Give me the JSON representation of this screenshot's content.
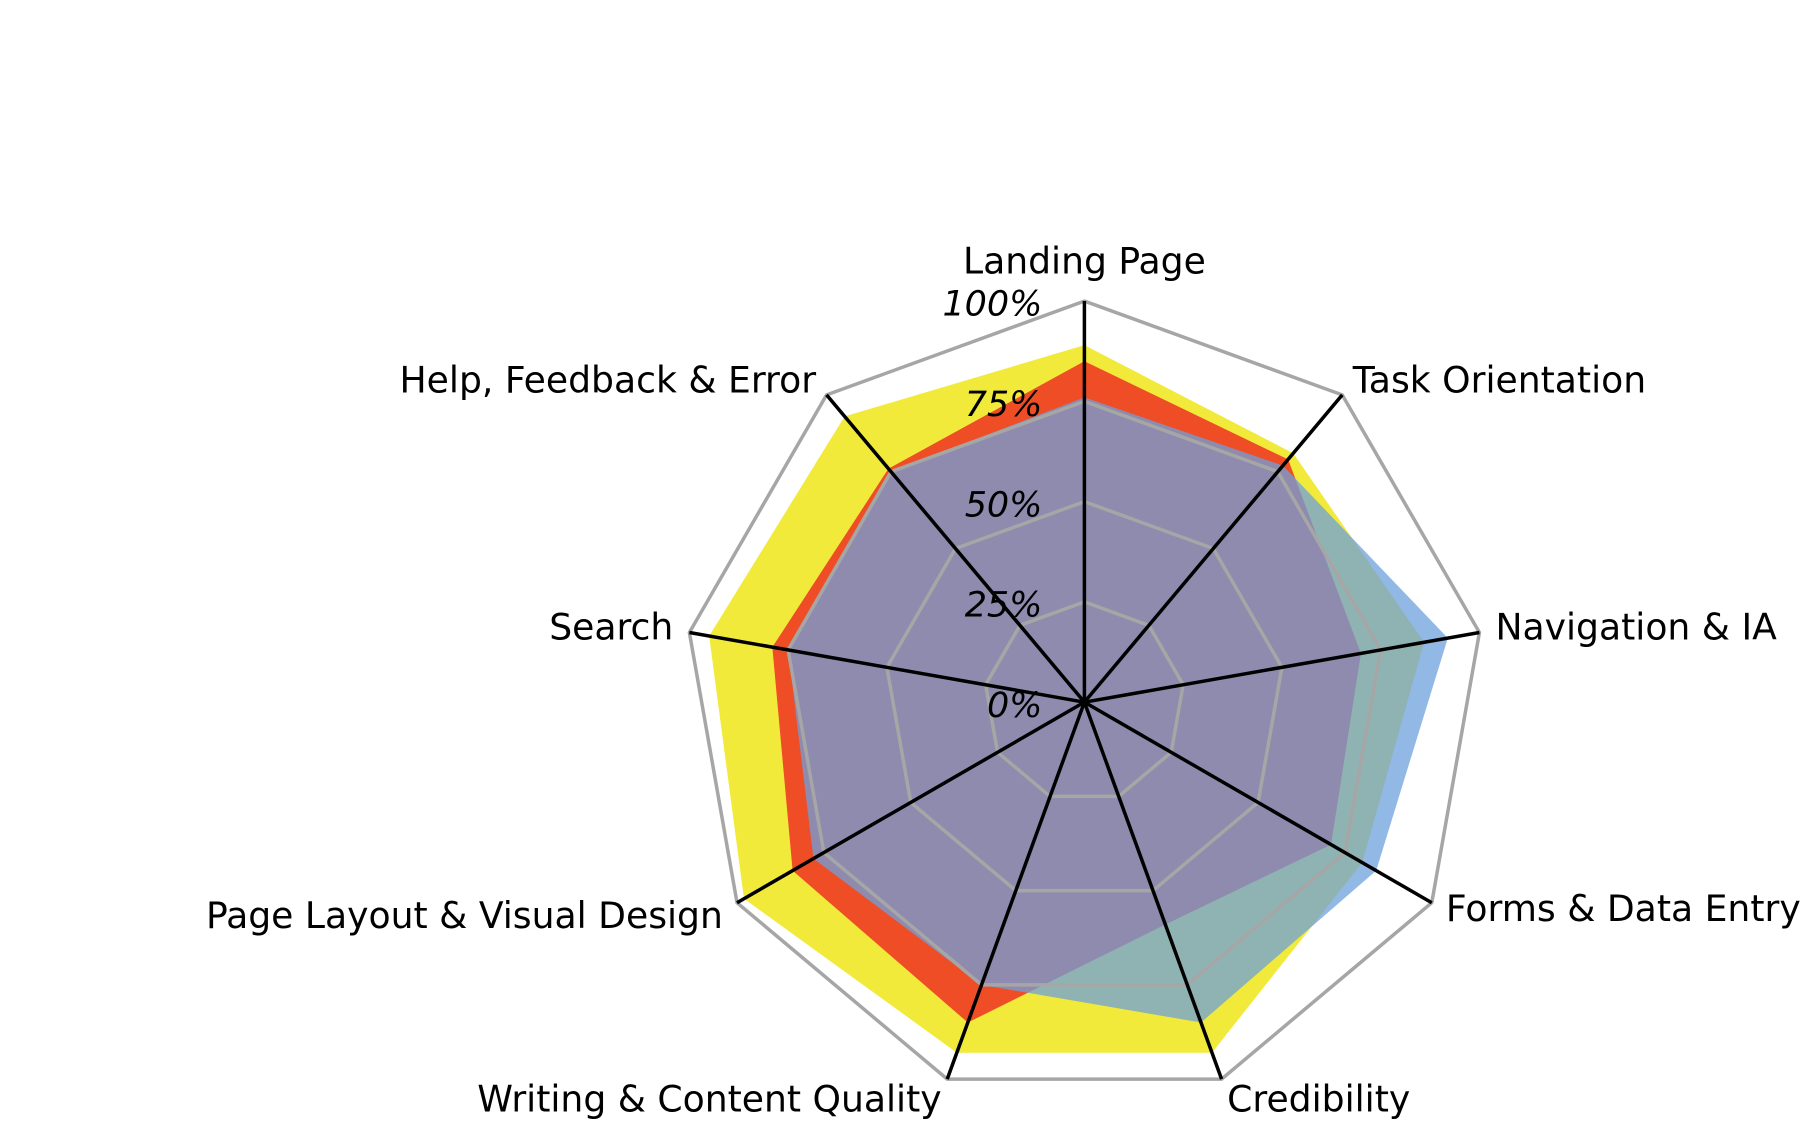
{
  "chart_data": {
    "type": "radar",
    "categories": [
      "Landing Page",
      "Task Orientation",
      "Navigation & IA",
      "Forms & Data Entry",
      "Credibility",
      "Writing & Content Quality",
      "Page Layout & Visual Design",
      "Search",
      "Help, Feedback & Error"
    ],
    "series": [
      {
        "color": "#f2ea3a",
        "values": [
          89,
          81,
          86,
          80,
          93,
          93,
          98,
          95,
          93
        ]
      },
      {
        "color": "#ee4d25",
        "values": [
          85,
          79,
          70,
          71,
          59,
          85,
          84,
          79,
          76
        ]
      },
      {
        "color": "#6ea0dc",
        "values": [
          76,
          77,
          92,
          84,
          85,
          75,
          78,
          75,
          75
        ]
      }
    ],
    "rlim": [
      0,
      100
    ],
    "rticks": [
      {
        "value": 0,
        "label": "0%"
      },
      {
        "value": 25,
        "label": "25%"
      },
      {
        "value": 50,
        "label": "50%"
      },
      {
        "value": 75,
        "label": "75%"
      },
      {
        "value": 100,
        "label": "100%"
      }
    ],
    "grid": true
  }
}
